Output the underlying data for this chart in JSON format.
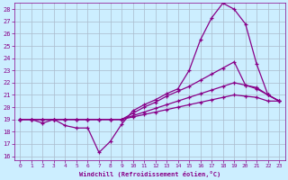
{
  "xlabel": "Windchill (Refroidissement éolien,°C)",
  "background_color": "#cceeff",
  "grid_color": "#aabbcc",
  "line_color": "#880088",
  "xlim": [
    -0.5,
    23.5
  ],
  "ylim": [
    15.7,
    28.5
  ],
  "xticks": [
    0,
    1,
    2,
    3,
    4,
    5,
    6,
    7,
    8,
    9,
    10,
    11,
    12,
    13,
    14,
    15,
    16,
    17,
    18,
    19,
    20,
    21,
    22,
    23
  ],
  "yticks": [
    16,
    17,
    18,
    19,
    20,
    21,
    22,
    23,
    24,
    25,
    26,
    27,
    28
  ],
  "curve1_x": [
    0,
    1,
    2,
    3,
    4,
    5,
    6,
    7,
    8,
    9,
    10,
    11,
    12,
    13,
    14,
    15,
    16,
    17,
    18,
    19,
    20,
    21,
    22,
    23
  ],
  "curve1_y": [
    19.0,
    19.0,
    18.7,
    19.0,
    18.5,
    18.3,
    18.3,
    16.3,
    17.2,
    18.6,
    19.7,
    20.2,
    20.6,
    21.1,
    21.5,
    23.0,
    25.5,
    27.3,
    28.5,
    28.0,
    26.8,
    23.5,
    21.0,
    20.5
  ],
  "curve2_x": [
    0,
    1,
    2,
    3,
    4,
    5,
    6,
    7,
    8,
    9,
    10,
    11,
    12,
    13,
    14,
    15,
    16,
    17,
    18,
    19,
    20,
    21,
    22,
    23
  ],
  "curve2_y": [
    19.0,
    19.0,
    19.0,
    19.0,
    19.0,
    19.0,
    19.0,
    19.0,
    19.0,
    19.0,
    19.5,
    20.0,
    20.4,
    20.9,
    21.3,
    21.7,
    22.2,
    22.7,
    23.2,
    23.7,
    21.8,
    21.6,
    21.0,
    20.5
  ],
  "curve3_x": [
    0,
    1,
    2,
    3,
    4,
    5,
    6,
    7,
    8,
    9,
    10,
    11,
    12,
    13,
    14,
    15,
    16,
    17,
    18,
    19,
    20,
    21,
    22,
    23
  ],
  "curve3_y": [
    19.0,
    19.0,
    19.0,
    19.0,
    19.0,
    19.0,
    19.0,
    19.0,
    19.0,
    19.0,
    19.3,
    19.6,
    19.9,
    20.2,
    20.5,
    20.8,
    21.1,
    21.4,
    21.7,
    22.0,
    21.8,
    21.5,
    21.0,
    20.5
  ],
  "curve4_x": [
    0,
    1,
    2,
    3,
    4,
    5,
    6,
    7,
    8,
    9,
    10,
    11,
    12,
    13,
    14,
    15,
    16,
    17,
    18,
    19,
    20,
    21,
    22,
    23
  ],
  "curve4_y": [
    19.0,
    19.0,
    19.0,
    19.0,
    19.0,
    19.0,
    19.0,
    19.0,
    19.0,
    19.0,
    19.2,
    19.4,
    19.6,
    19.8,
    20.0,
    20.2,
    20.4,
    20.6,
    20.8,
    21.0,
    20.9,
    20.8,
    20.5,
    20.5
  ]
}
